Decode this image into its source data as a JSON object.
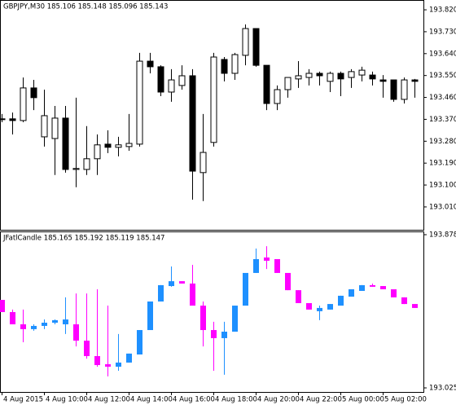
{
  "chart_data": [
    {
      "type": "candlestick",
      "title": "GBPJPY,M30  185.106 185.148 185.096 185.143",
      "up_color": "#ffffff",
      "down_color": "#000000",
      "edge_color": "#000000",
      "ylim": [
        192.916,
        193.857
      ],
      "yticks": [
        {
          "value": 193.82,
          "label": "193.820"
        },
        {
          "value": 193.73,
          "label": "193.730"
        },
        {
          "value": 193.64,
          "label": "193.640"
        },
        {
          "value": 193.55,
          "label": "193.550"
        },
        {
          "value": 193.46,
          "label": "193.460"
        },
        {
          "value": 193.37,
          "label": "193.370"
        },
        {
          "value": 193.28,
          "label": "193.280"
        },
        {
          "value": 193.19,
          "label": "193.190"
        },
        {
          "value": 193.1,
          "label": "193.100"
        },
        {
          "value": 193.01,
          "label": "193.010"
        }
      ],
      "open": [
        193.37,
        193.372,
        193.365,
        193.499,
        193.298,
        193.291,
        193.375,
        193.164,
        193.164,
        193.208,
        193.268,
        193.255,
        193.258,
        193.268,
        193.609,
        193.586,
        193.482,
        193.509,
        193.549,
        193.151,
        193.275,
        193.616,
        193.559,
        193.633,
        193.743,
        193.592,
        193.435,
        193.492,
        193.536,
        193.542,
        193.559,
        193.526,
        193.559,
        193.542,
        193.552,
        193.552,
        193.532,
        193.532,
        193.452,
        193.532
      ],
      "high": [
        193.392,
        193.398,
        193.542,
        193.532,
        193.492,
        193.425,
        193.425,
        193.459,
        193.342,
        193.308,
        193.325,
        193.298,
        193.392,
        193.643,
        193.643,
        193.592,
        193.576,
        193.592,
        193.576,
        193.392,
        193.643,
        193.626,
        193.643,
        193.76,
        193.743,
        193.592,
        193.509,
        193.542,
        193.609,
        193.576,
        193.566,
        193.566,
        193.566,
        193.576,
        193.586,
        193.566,
        193.552,
        193.532,
        193.542,
        193.536
      ],
      "low": [
        193.358,
        193.308,
        193.358,
        193.408,
        193.258,
        193.141,
        193.151,
        193.091,
        193.141,
        193.141,
        193.231,
        193.218,
        193.241,
        193.258,
        193.559,
        193.465,
        193.442,
        193.492,
        193.04,
        193.034,
        193.258,
        193.526,
        193.532,
        193.592,
        193.586,
        193.408,
        193.408,
        193.459,
        193.499,
        193.509,
        193.509,
        193.482,
        193.465,
        193.499,
        193.526,
        193.509,
        193.459,
        193.442,
        193.435,
        193.459
      ],
      "close": [
        193.372,
        193.365,
        193.499,
        193.459,
        193.385,
        193.375,
        193.164,
        193.168,
        193.208,
        193.265,
        193.255,
        193.265,
        193.271,
        193.609,
        193.586,
        193.482,
        193.532,
        193.549,
        193.157,
        193.234,
        193.626,
        193.559,
        193.636,
        193.743,
        193.592,
        193.435,
        193.492,
        193.542,
        193.549,
        193.559,
        193.549,
        193.559,
        193.536,
        193.566,
        193.572,
        193.536,
        193.526,
        193.452,
        193.532,
        193.526
      ]
    },
    {
      "type": "candlestick",
      "title": "JFatlCandle 185.165 185.192 185.119 185.147",
      "up_color": "#1e90ff",
      "down_color": "#ff00ff",
      "ylim": [
        193.025,
        193.878
      ],
      "yticks": [
        193.878,
        193.025
      ],
      "categories": [
        "4 Aug 2015",
        null,
        null,
        null,
        "4 Aug 10:00",
        null,
        null,
        null,
        "4 Aug 12:00",
        null,
        null,
        null,
        "4 Aug 14:00",
        null,
        null,
        null,
        "4 Aug 16:00",
        null,
        null,
        null,
        "4 Aug 18:00",
        null,
        null,
        null,
        "4 Aug 20:00",
        null,
        null,
        null,
        "4 Aug 22:00",
        null,
        null,
        null,
        "5 Aug 00:00",
        null,
        null,
        null,
        "5 Aug 02:00",
        null,
        null,
        null
      ],
      "open": [
        193.515,
        193.447,
        193.379,
        193.352,
        193.37,
        193.388,
        193.379,
        193.379,
        193.288,
        193.202,
        193.157,
        193.143,
        193.166,
        193.211,
        193.347,
        193.506,
        193.592,
        193.619,
        193.606,
        193.483,
        193.347,
        193.302,
        193.338,
        193.483,
        193.665,
        193.751,
        193.742,
        193.665,
        193.569,
        193.497,
        193.452,
        193.461,
        193.483,
        193.533,
        193.565,
        193.597,
        193.592,
        193.574,
        193.529,
        193.492
      ],
      "high": [
        193.515,
        193.461,
        193.461,
        193.379,
        193.406,
        193.406,
        193.529,
        193.551,
        193.551,
        193.574,
        193.483,
        193.325,
        193.216,
        193.347,
        193.506,
        193.597,
        193.701,
        193.619,
        193.71,
        193.506,
        193.393,
        193.393,
        193.483,
        193.665,
        193.801,
        193.814,
        193.742,
        193.665,
        193.569,
        193.497,
        193.483,
        193.492,
        193.538,
        193.574,
        193.597,
        193.606,
        193.592,
        193.574,
        193.529,
        193.492
      ],
      "low": [
        193.447,
        193.379,
        193.279,
        193.343,
        193.352,
        193.379,
        193.325,
        193.256,
        193.188,
        193.143,
        193.089,
        193.12,
        193.166,
        193.211,
        193.347,
        193.506,
        193.588,
        193.606,
        193.483,
        193.256,
        193.12,
        193.098,
        193.338,
        193.483,
        193.665,
        193.687,
        193.665,
        193.569,
        193.497,
        193.461,
        193.402,
        193.461,
        193.483,
        193.533,
        193.565,
        193.588,
        193.574,
        193.529,
        193.492,
        193.47
      ],
      "close": [
        193.447,
        193.379,
        193.352,
        193.37,
        193.388,
        193.402,
        193.406,
        193.288,
        193.202,
        193.152,
        193.143,
        193.166,
        193.216,
        193.347,
        193.506,
        193.597,
        193.619,
        193.606,
        193.483,
        193.347,
        193.302,
        193.338,
        193.483,
        193.665,
        193.742,
        193.733,
        193.665,
        193.569,
        193.497,
        193.461,
        193.47,
        193.492,
        193.538,
        193.574,
        193.597,
        193.588,
        193.574,
        193.529,
        193.492,
        193.47
      ]
    }
  ]
}
